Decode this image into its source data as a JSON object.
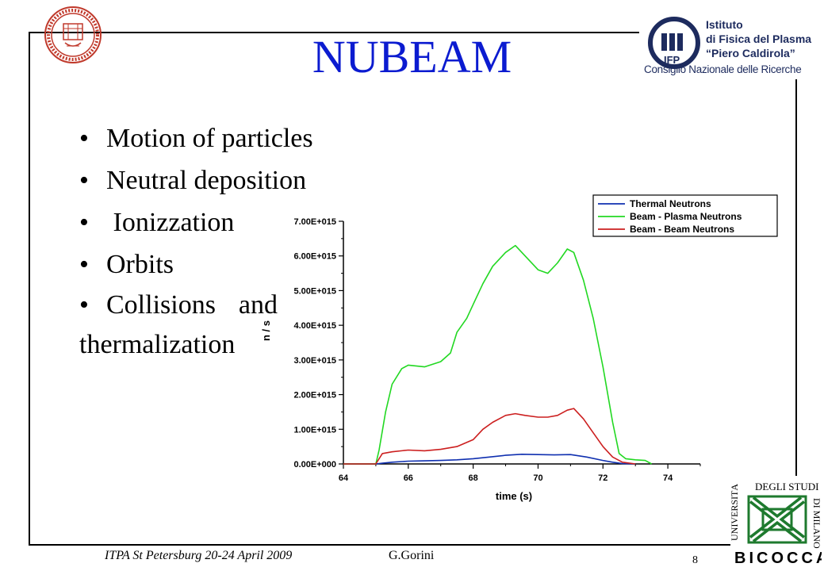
{
  "slide": {
    "title": "NUBEAM",
    "bullets": [
      "Motion of particles",
      "Neutral deposition",
      " Ionizzation",
      "Orbits",
      "Collisions and thermalization"
    ],
    "footer": {
      "event": "ITPA St Petersburg 20-24 April 2009",
      "author": "G.Gorini",
      "page_number": "8"
    }
  },
  "logos": {
    "ifp": {
      "line1": "Istituto",
      "line2": "di Fisica del Plasma",
      "line3": "“Piero Caldirola”",
      "cnr": "Consiglio Nazionale delle Ricerche",
      "mark": "IFP"
    },
    "bicocca": {
      "arc_left": "UNIVERSITÀ",
      "arc_top": "DEGLI STUDI",
      "arc_right": "DI MILANO",
      "name": "BICOCCA"
    },
    "colors": {
      "ifp_blue": "#1d2b5e",
      "bicocca_green": "#1e7a2e",
      "seal_red": "#c0392b"
    }
  },
  "chart_data": {
    "type": "line",
    "title": "",
    "xlabel": "time (s)",
    "ylabel": "n / s",
    "xlim": [
      64,
      75
    ],
    "ylim": [
      0,
      7000000000000000.0
    ],
    "x_ticks": [
      64,
      66,
      68,
      70,
      72,
      74
    ],
    "x_tick_labels": [
      "64",
      "66",
      "68",
      "70",
      "72",
      "74"
    ],
    "y_ticks": [
      0,
      1000000000000000.0,
      2000000000000000.0,
      3000000000000000.0,
      4000000000000000.0,
      5000000000000000.0,
      6000000000000000.0,
      7000000000000000.0
    ],
    "y_tick_labels": [
      "0.00E+000",
      "1.00E+015",
      "2.00E+015",
      "3.00E+015",
      "4.00E+015",
      "5.00E+015",
      "6.00E+015",
      "7.00E+015"
    ],
    "grid": false,
    "legend_position": "top-right",
    "series": [
      {
        "name": "Thermal Neutrons",
        "color": "#1030b0",
        "x": [
          64,
          65.0,
          65.2,
          65.5,
          66,
          66.5,
          67,
          67.5,
          68,
          68.5,
          69,
          69.5,
          70,
          70.5,
          71,
          71.5,
          72,
          72.3,
          72.6,
          73
        ],
        "y": [
          0,
          0,
          20000000000000.0,
          50000000000000.0,
          80000000000000.0,
          90000000000000.0,
          100000000000000.0,
          120000000000000.0,
          150000000000000.0,
          200000000000000.0,
          250000000000000.0,
          280000000000000.0,
          270000000000000.0,
          260000000000000.0,
          270000000000000.0,
          200000000000000.0,
          100000000000000.0,
          50000000000000.0,
          10000000000000.0,
          0
        ]
      },
      {
        "name": "Beam - Plasma Neutrons",
        "color": "#22d822",
        "x": [
          64,
          65.0,
          65.1,
          65.3,
          65.5,
          65.8,
          66,
          66.5,
          67,
          67.3,
          67.5,
          67.8,
          68,
          68.3,
          68.6,
          69,
          69.3,
          69.6,
          70,
          70.3,
          70.6,
          70.9,
          71.1,
          71.4,
          71.7,
          72,
          72.3,
          72.5,
          72.7,
          73,
          73.3,
          73.5
        ],
        "y": [
          0,
          0,
          400000000000000.0,
          1500000000000000.0,
          2300000000000000.0,
          2750000000000000.0,
          2850000000000000.0,
          2800000000000000.0,
          2950000000000000.0,
          3200000000000000.0,
          3800000000000000.0,
          4200000000000000.0,
          4600000000000000.0,
          5200000000000000.0,
          5700000000000000.0,
          6100000000000000.0,
          6300000000000000.0,
          6000000000000000.0,
          5600000000000000.0,
          5500000000000000.0,
          5800000000000000.0,
          6200000000000000.0,
          6100000000000000.0,
          5300000000000000.0,
          4200000000000000.0,
          2800000000000000.0,
          1200000000000000.0,
          300000000000000.0,
          150000000000000.0,
          120000000000000.0,
          100000000000000.0,
          0
        ]
      },
      {
        "name": "Beam - Beam Neutrons",
        "color": "#cc1f1f",
        "x": [
          64,
          65.0,
          65.2,
          65.5,
          66,
          66.5,
          67,
          67.5,
          68,
          68.3,
          68.6,
          69,
          69.3,
          69.6,
          70,
          70.3,
          70.6,
          70.9,
          71.1,
          71.4,
          71.7,
          72,
          72.3,
          72.6,
          73
        ],
        "y": [
          0,
          0,
          300000000000000.0,
          350000000000000.0,
          400000000000000.0,
          380000000000000.0,
          420000000000000.0,
          500000000000000.0,
          700000000000000.0,
          1000000000000000.0,
          1200000000000000.0,
          1400000000000000.0,
          1450000000000000.0,
          1400000000000000.0,
          1350000000000000.0,
          1350000000000000.0,
          1400000000000000.0,
          1550000000000000.0,
          1600000000000000.0,
          1300000000000000.0,
          900000000000000.0,
          500000000000000.0,
          200000000000000.0,
          50000000000000.0,
          0
        ]
      }
    ]
  }
}
